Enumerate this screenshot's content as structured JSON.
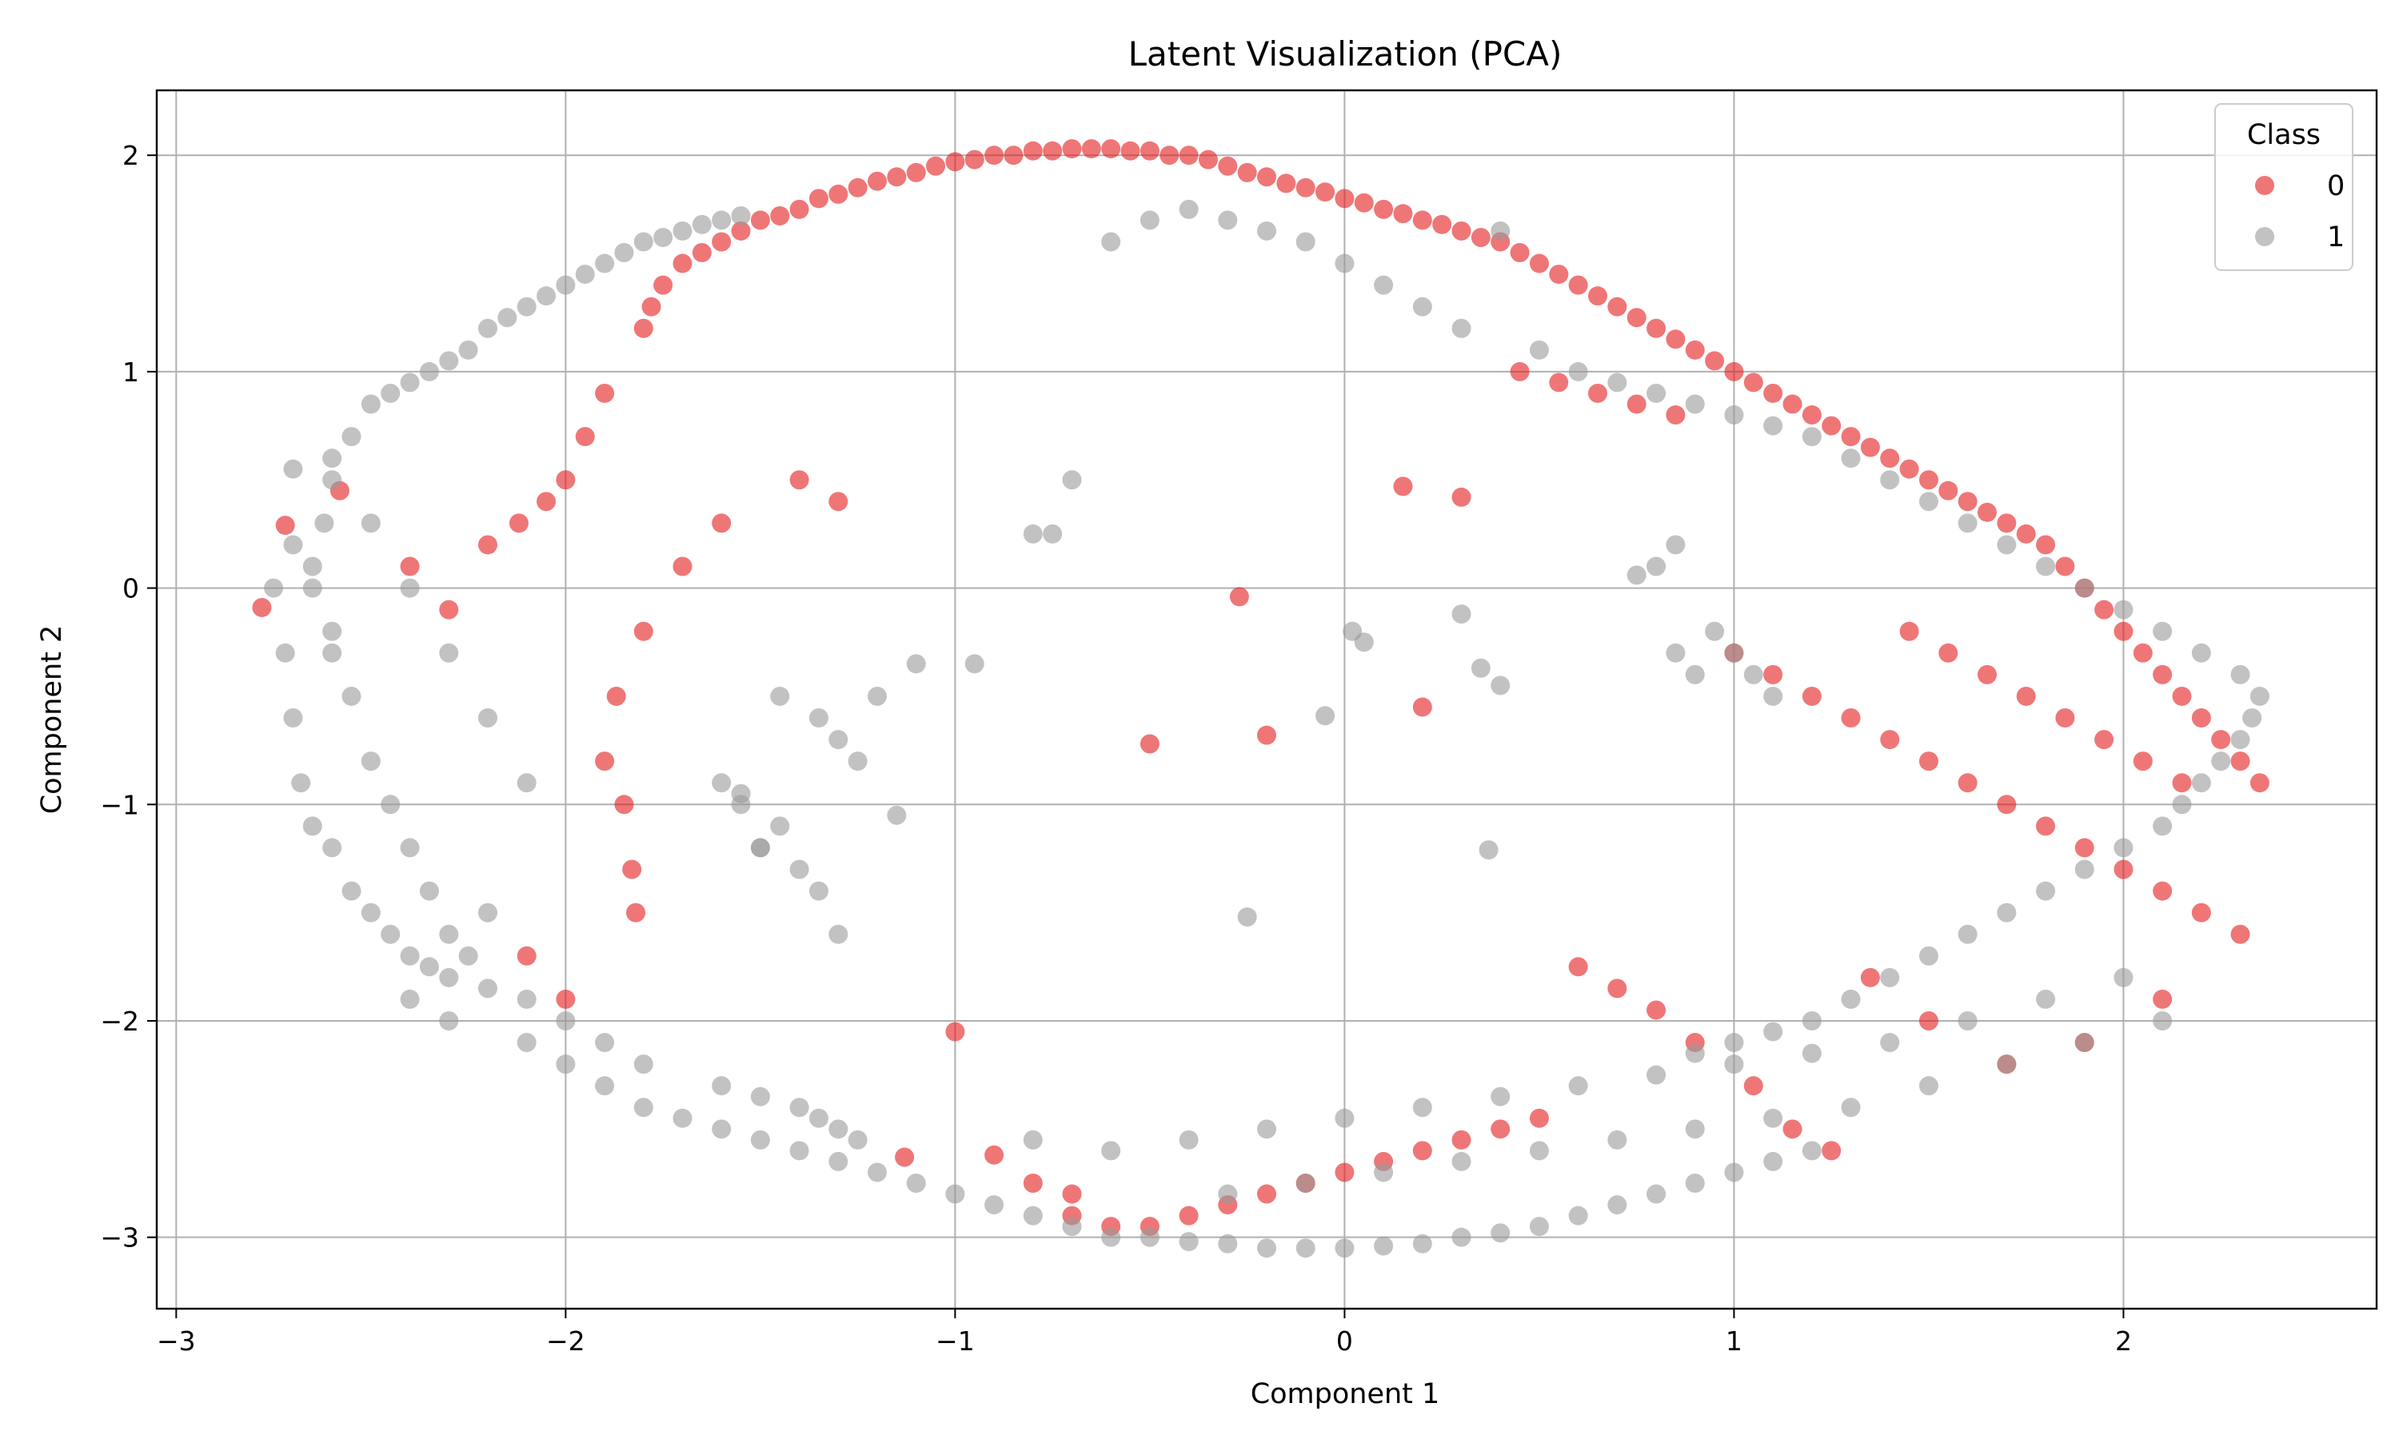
{
  "chart_data": {
    "type": "scatter",
    "title": "Latent Visualization (PCA)",
    "xlabel": "Component 1",
    "ylabel": "Component 2",
    "xlim": [
      -3.05,
      2.65
    ],
    "ylim": [
      -3.33,
      2.3
    ],
    "xticks": [
      -3,
      -2,
      -1,
      0,
      1,
      2
    ],
    "yticks": [
      -3,
      -2,
      -1,
      0,
      1,
      2
    ],
    "xtick_labels": [
      "−3",
      "−2",
      "−1",
      "0",
      "1",
      "2"
    ],
    "ytick_labels": [
      "−3",
      "−2",
      "−1",
      "0",
      "1",
      "2"
    ],
    "grid": true,
    "legend": {
      "title": "Class",
      "placement": "top-right",
      "entries": [
        {
          "label": "0",
          "color": "#e41a1c"
        },
        {
          "label": "1",
          "color": "#999999"
        }
      ]
    },
    "series": [
      {
        "name": "0",
        "color": "#e41a1c",
        "opacity": 0.6,
        "x": [
          -2.78,
          -2.72,
          -2.58,
          -2.4,
          -2.3,
          -2.2,
          -2.12,
          -2.05,
          -2.0,
          -1.95,
          -1.9,
          -1.87,
          -1.85,
          -1.83,
          -1.82,
          -1.8,
          -1.78,
          -1.75,
          -1.7,
          -1.65,
          -1.6,
          -1.55,
          -1.5,
          -1.45,
          -1.4,
          -1.35,
          -1.3,
          -1.25,
          -1.2,
          -1.15,
          -1.1,
          -1.05,
          -1.0,
          -0.95,
          -0.9,
          -0.85,
          -0.8,
          -0.75,
          -0.7,
          -0.65,
          -0.6,
          -0.55,
          -0.5,
          -0.45,
          -0.4,
          -0.35,
          -0.3,
          -0.25,
          -0.2,
          -0.15,
          -0.1,
          -0.05,
          0.0,
          0.05,
          0.1,
          0.15,
          0.2,
          0.25,
          0.3,
          0.35,
          0.4,
          0.45,
          0.5,
          0.55,
          0.6,
          0.65,
          0.7,
          0.75,
          0.8,
          0.85,
          0.9,
          0.95,
          1.0,
          1.05,
          1.1,
          1.15,
          1.2,
          1.25,
          1.3,
          1.35,
          1.4,
          1.45,
          1.5,
          1.55,
          1.6,
          1.65,
          1.7,
          1.75,
          1.8,
          1.85,
          1.9,
          1.95,
          2.0,
          2.05,
          2.1,
          2.15,
          2.2,
          2.25,
          2.3,
          2.35,
          -0.5,
          -0.27,
          0.2,
          -1.0,
          -1.13,
          -0.2,
          0.3,
          0.15,
          1.0,
          1.1,
          1.2,
          1.3,
          1.4,
          1.5,
          1.6,
          1.7,
          1.8,
          1.9,
          2.0,
          2.1,
          2.2,
          1.45,
          1.55,
          1.65,
          1.75,
          1.85,
          1.95,
          2.05,
          2.15,
          1.35,
          1.5,
          1.7,
          1.9,
          2.1,
          2.3,
          0.6,
          0.7,
          0.8,
          0.9,
          1.05,
          1.15,
          1.25,
          -0.7,
          -0.6,
          -0.5,
          -0.4,
          -0.3,
          -0.2,
          -0.1,
          0.0,
          0.1,
          0.2,
          0.3,
          0.4,
          0.5,
          -1.4,
          -1.3,
          -1.6,
          -1.7,
          -1.8,
          -1.9,
          -2.0,
          -2.1,
          -0.9,
          -0.8,
          -0.7,
          0.45,
          0.55,
          0.65,
          0.75,
          0.85
        ],
        "y": [
          -0.09,
          0.29,
          0.45,
          0.1,
          -0.1,
          0.2,
          0.3,
          0.4,
          0.5,
          0.7,
          0.9,
          -0.5,
          -1.0,
          -1.3,
          -1.5,
          1.2,
          1.3,
          1.4,
          1.5,
          1.55,
          1.6,
          1.65,
          1.7,
          1.72,
          1.75,
          1.8,
          1.82,
          1.85,
          1.88,
          1.9,
          1.92,
          1.95,
          1.97,
          1.98,
          2.0,
          2.0,
          2.02,
          2.02,
          2.03,
          2.03,
          2.03,
          2.02,
          2.02,
          2.0,
          2.0,
          1.98,
          1.95,
          1.92,
          1.9,
          1.87,
          1.85,
          1.83,
          1.8,
          1.78,
          1.75,
          1.73,
          1.7,
          1.68,
          1.65,
          1.62,
          1.6,
          1.55,
          1.5,
          1.45,
          1.4,
          1.35,
          1.3,
          1.25,
          1.2,
          1.15,
          1.1,
          1.05,
          1.0,
          0.95,
          0.9,
          0.85,
          0.8,
          0.75,
          0.7,
          0.65,
          0.6,
          0.55,
          0.5,
          0.45,
          0.4,
          0.35,
          0.3,
          0.25,
          0.2,
          0.1,
          0.0,
          -0.1,
          -0.2,
          -0.3,
          -0.4,
          -0.5,
          -0.6,
          -0.7,
          -0.8,
          -0.9,
          -0.72,
          -0.04,
          -0.55,
          -2.05,
          -2.63,
          -0.68,
          0.42,
          0.47,
          -0.3,
          -0.4,
          -0.5,
          -0.6,
          -0.7,
          -0.8,
          -0.9,
          -1.0,
          -1.1,
          -1.2,
          -1.3,
          -1.4,
          -1.5,
          -0.2,
          -0.3,
          -0.4,
          -0.5,
          -0.6,
          -0.7,
          -0.8,
          -0.9,
          -1.8,
          -2.0,
          -2.2,
          -2.1,
          -1.9,
          -1.6,
          -1.75,
          -1.85,
          -1.95,
          -2.1,
          -2.3,
          -2.5,
          -2.6,
          -2.9,
          -2.95,
          -2.95,
          -2.9,
          -2.85,
          -2.8,
          -2.75,
          -2.7,
          -2.65,
          -2.6,
          -2.55,
          -2.5,
          -2.45,
          0.5,
          0.4,
          0.3,
          0.1,
          -0.2,
          -0.8,
          -1.9,
          -1.7,
          -2.62,
          -2.75,
          -2.8,
          1.0,
          0.95,
          0.9,
          0.85,
          0.8
        ]
      },
      {
        "name": "1",
        "color": "#999999",
        "opacity": 0.6,
        "x": [
          -2.75,
          -2.72,
          -2.7,
          -2.68,
          -2.65,
          -2.62,
          -2.6,
          -2.55,
          -2.5,
          -2.45,
          -2.4,
          -2.35,
          -2.3,
          -2.25,
          -2.2,
          -2.15,
          -2.1,
          -2.05,
          -2.0,
          -1.95,
          -1.9,
          -1.85,
          -1.8,
          -1.75,
          -1.7,
          -1.65,
          -1.6,
          -1.55,
          -2.6,
          -2.55,
          -2.5,
          -2.45,
          -2.4,
          -2.35,
          -2.3,
          -2.2,
          -2.1,
          -2.0,
          -1.9,
          -1.8,
          -2.65,
          -2.6,
          -2.55,
          -2.5,
          -2.45,
          -2.4,
          -2.35,
          -2.3,
          -2.25,
          -2.2,
          -2.7,
          -2.65,
          -2.6,
          -2.5,
          -2.4,
          -2.3,
          -2.2,
          -2.1,
          -1.6,
          -1.5,
          -1.4,
          -1.35,
          -1.3,
          -1.25,
          -1.55,
          -1.45,
          -1.5,
          -1.3,
          -1.1,
          -0.8,
          -0.7,
          -0.6,
          -0.5,
          -0.4,
          -0.3,
          -0.2,
          -0.1,
          0.0,
          0.1,
          0.2,
          0.3,
          0.4,
          0.5,
          0.6,
          0.7,
          0.8,
          0.9,
          1.0,
          1.1,
          1.2,
          1.3,
          1.4,
          1.5,
          1.6,
          1.7,
          1.8,
          1.9,
          2.0,
          2.1,
          2.2,
          2.3,
          2.35,
          2.33,
          2.3,
          2.25,
          2.2,
          2.15,
          2.1,
          2.0,
          1.9,
          1.8,
          1.7,
          1.6,
          1.5,
          1.4,
          1.3,
          1.2,
          1.1,
          1.0,
          0.9,
          0.95,
          1.0,
          1.05,
          1.1,
          0.85,
          0.9,
          0.75,
          0.8,
          0.85,
          0.3,
          0.35,
          0.4,
          0.37,
          -0.05,
          0.02,
          0.05,
          -0.25,
          -0.75,
          -0.95,
          -1.15,
          -1.2,
          -1.35,
          -1.3,
          -1.25,
          -1.6,
          -1.55,
          -1.45,
          -1.5,
          -1.4,
          -1.35,
          -2.6,
          -2.7,
          -2.4,
          -2.3,
          -2.1,
          -2.0,
          -1.9,
          -1.8,
          -1.7,
          -1.6,
          -1.5,
          -1.4,
          -1.3,
          -1.2,
          -1.1,
          -1.0,
          -0.9,
          -0.8,
          -0.7,
          -0.6,
          -0.5,
          -0.4,
          -0.3,
          -0.2,
          -0.1,
          0.0,
          0.1,
          0.2,
          0.3,
          0.4,
          0.5,
          0.6,
          0.7,
          0.8,
          0.9,
          1.0,
          1.1,
          1.2,
          -0.8,
          -0.6,
          -0.4,
          -0.2,
          0.0,
          0.2,
          0.4,
          0.6,
          0.8,
          1.0,
          1.2,
          1.4,
          1.6,
          1.8,
          2.0,
          -0.3,
          -0.1,
          0.1,
          0.3,
          0.5,
          0.7,
          0.9,
          1.1,
          1.3,
          1.5,
          1.7,
          1.9,
          2.1
        ],
        "y": [
          0.0,
          -0.3,
          -0.6,
          -0.9,
          -1.1,
          0.3,
          0.5,
          0.7,
          0.85,
          0.9,
          0.95,
          1.0,
          1.05,
          1.1,
          1.2,
          1.25,
          1.3,
          1.35,
          1.4,
          1.45,
          1.5,
          1.55,
          1.6,
          1.62,
          1.65,
          1.68,
          1.7,
          1.72,
          -1.2,
          -1.4,
          -1.5,
          -1.6,
          -1.7,
          -1.75,
          -1.8,
          -1.85,
          -1.9,
          -2.0,
          -2.1,
          -2.2,
          0.1,
          -0.2,
          -0.5,
          -0.8,
          -1.0,
          -1.2,
          -1.4,
          -1.6,
          -1.7,
          -1.5,
          0.2,
          0.0,
          -0.3,
          0.3,
          0.0,
          -0.3,
          -0.6,
          -0.9,
          -2.3,
          -2.35,
          -2.4,
          -2.45,
          -2.5,
          -2.55,
          -0.95,
          -0.5,
          -1.2,
          -1.6,
          -0.35,
          0.25,
          0.5,
          1.6,
          1.7,
          1.75,
          1.7,
          1.65,
          1.6,
          1.5,
          1.4,
          1.3,
          1.2,
          1.65,
          1.1,
          1.0,
          0.95,
          0.9,
          0.85,
          0.8,
          0.75,
          0.7,
          0.6,
          0.5,
          0.4,
          0.3,
          0.2,
          0.1,
          0.0,
          -0.1,
          -0.2,
          -0.3,
          -0.4,
          -0.5,
          -0.6,
          -0.7,
          -0.8,
          -0.9,
          -1.0,
          -1.1,
          -1.2,
          -1.3,
          -1.4,
          -1.5,
          -1.6,
          -1.7,
          -1.8,
          -1.9,
          -2.0,
          -2.05,
          -2.1,
          -2.15,
          -0.2,
          -0.3,
          -0.4,
          -0.5,
          -0.3,
          -0.4,
          0.06,
          0.1,
          0.2,
          -0.12,
          -0.37,
          -0.45,
          -1.21,
          -0.59,
          -0.2,
          -0.25,
          -1.52,
          0.25,
          -0.35,
          -1.05,
          -0.5,
          -0.6,
          -0.7,
          -0.8,
          -0.9,
          -1.0,
          -1.1,
          -1.2,
          -1.3,
          -1.4,
          0.6,
          0.55,
          -1.9,
          -2.0,
          -2.1,
          -2.2,
          -2.3,
          -2.4,
          -2.45,
          -2.5,
          -2.55,
          -2.6,
          -2.65,
          -2.7,
          -2.75,
          -2.8,
          -2.85,
          -2.9,
          -2.95,
          -3.0,
          -3.0,
          -3.02,
          -3.03,
          -3.05,
          -3.05,
          -3.05,
          -3.04,
          -3.03,
          -3.0,
          -2.98,
          -2.95,
          -2.9,
          -2.85,
          -2.8,
          -2.75,
          -2.7,
          -2.65,
          -2.6,
          -2.55,
          -2.6,
          -2.55,
          -2.5,
          -2.45,
          -2.4,
          -2.35,
          -2.3,
          -2.25,
          -2.2,
          -2.15,
          -2.1,
          -2.0,
          -1.9,
          -1.8,
          -2.8,
          -2.75,
          -2.7,
          -2.65,
          -2.6,
          -2.55,
          -2.5,
          -2.45,
          -2.4,
          -2.3,
          -2.2,
          -2.1,
          -2.0
        ]
      }
    ]
  }
}
